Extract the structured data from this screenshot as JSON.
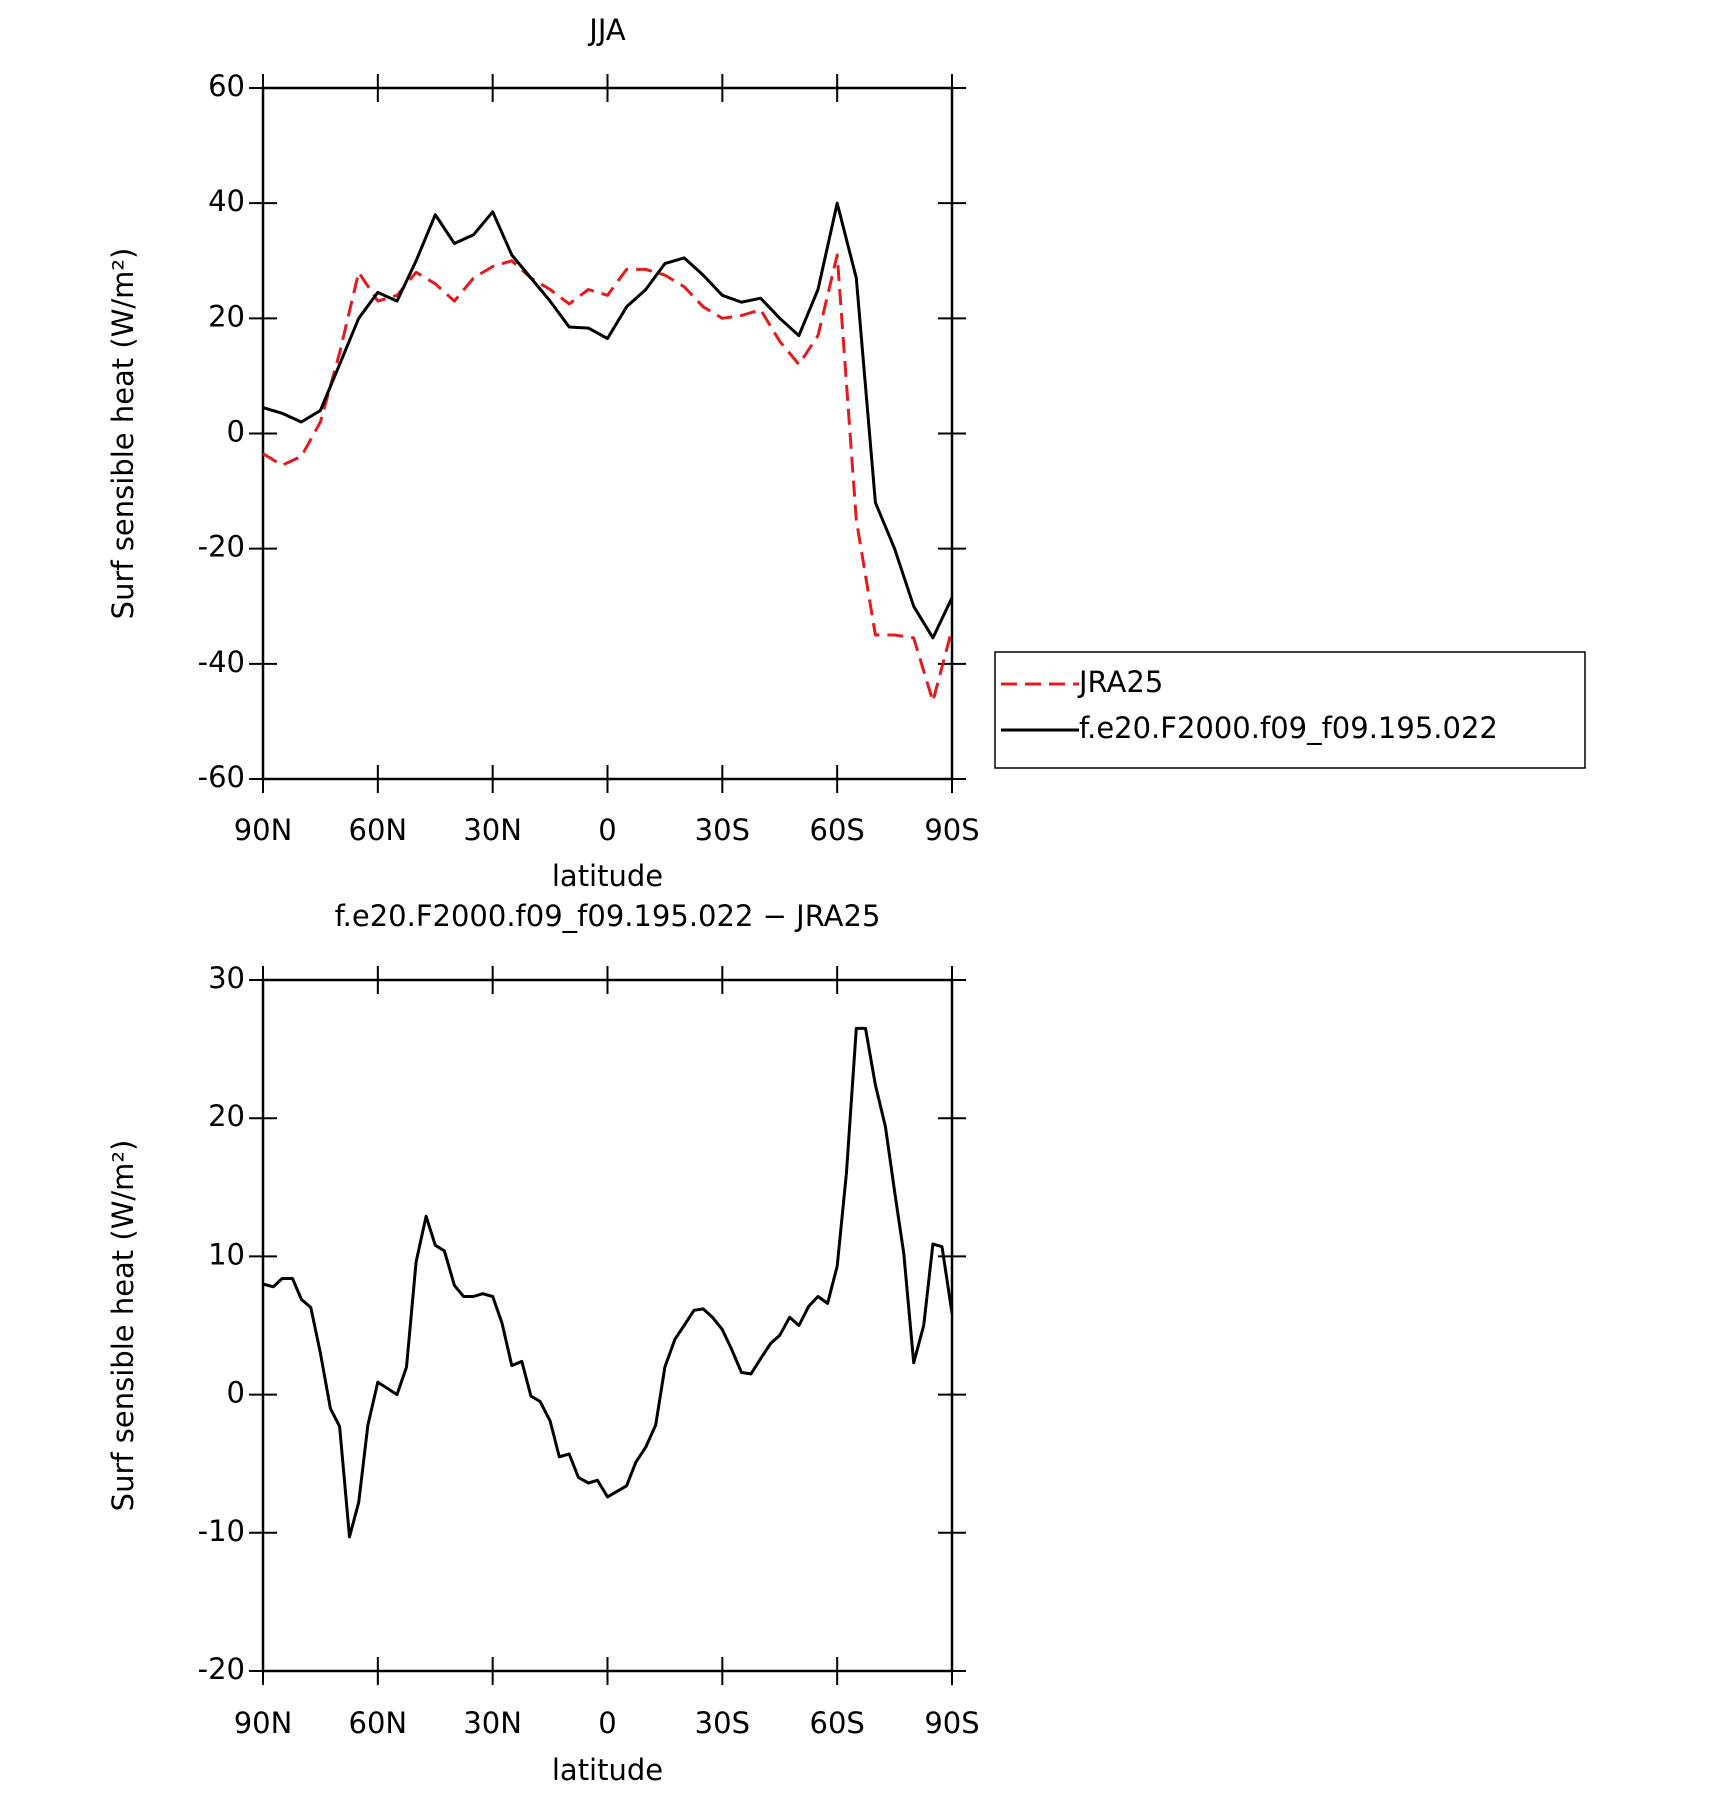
{
  "chart_data": [
    {
      "type": "line",
      "title": "JJA",
      "xlabel": "latitude",
      "ylabel": "Surf sensible heat (W/m²)",
      "x": [
        90,
        85,
        80,
        75,
        70,
        65,
        60,
        55,
        50,
        45,
        40,
        35,
        30,
        25,
        20,
        15,
        10,
        5,
        0,
        -5,
        -10,
        -15,
        -20,
        -25,
        -30,
        -35,
        -40,
        -45,
        -50,
        -55,
        -60,
        -65,
        -70,
        -75,
        -80,
        -85,
        -90
      ],
      "series": [
        {
          "name": "JRA25",
          "color": "#e41a1c",
          "style": "dashed",
          "values": [
            -3.5,
            -5.5,
            -4,
            2,
            14,
            28,
            23,
            24,
            28,
            26,
            23,
            27,
            29,
            30,
            27,
            25,
            22.5,
            25,
            24,
            28.5,
            28.5,
            27.5,
            25.5,
            22,
            20,
            20.5,
            21.5,
            16,
            12,
            17,
            31,
            -15,
            -35,
            -35,
            -35.5,
            -46.5,
            -34
          ]
        },
        {
          "name": "f.e20.F2000.f09_f09.195.022",
          "color": "#000000",
          "style": "solid",
          "values": [
            4.5,
            3.5,
            2,
            4,
            12,
            20,
            24.5,
            23,
            30,
            38,
            33,
            34.5,
            38.5,
            31,
            27,
            23,
            18.5,
            18.3,
            16.5,
            22,
            25,
            29.5,
            30.5,
            27.5,
            24,
            22.8,
            23.5,
            20,
            17,
            25,
            40,
            27,
            -12,
            -20,
            -30,
            -35.5,
            -28.5
          ]
        }
      ],
      "xlim": [
        90,
        -90
      ],
      "xticks": [
        {
          "value": 90,
          "label": "90N"
        },
        {
          "value": 60,
          "label": "60N"
        },
        {
          "value": 30,
          "label": "30N"
        },
        0,
        {
          "value": -30,
          "label": "30S"
        },
        {
          "value": -60,
          "label": "60S"
        },
        {
          "value": -90,
          "label": "90S"
        }
      ],
      "ylim": [
        -60,
        60
      ],
      "yticks": [
        -60,
        -40,
        -20,
        0,
        20,
        40,
        60
      ],
      "legend": "outside-right"
    },
    {
      "type": "line",
      "title": "f.e20.F2000.f09_f09.195.022 − JRA25",
      "xlabel": "latitude",
      "ylabel": "Surf sensible heat (W/m²)",
      "x": [
        90,
        87.3,
        85,
        82.3,
        80,
        77.5,
        75,
        72.4,
        70,
        67.4,
        65,
        62.6,
        60,
        55,
        52.5,
        50,
        47.4,
        45,
        42.6,
        40,
        37.6,
        35,
        32.6,
        30,
        27.6,
        25,
        22.4,
        20,
        17.6,
        15,
        12.6,
        10,
        7.6,
        5,
        2.6,
        0,
        -5,
        -7.4,
        -10,
        -12.6,
        -15,
        -17.6,
        -20,
        -22.6,
        -25,
        -27.4,
        -30,
        -32.4,
        -35,
        -37.5,
        -40,
        -42.6,
        -45,
        -47.6,
        -50,
        -52.6,
        -55,
        -57.5,
        -60,
        -62.4,
        -65,
        -67.4,
        -70,
        -72.6,
        -75,
        -77.4,
        -80,
        -82.6,
        -85,
        -87.4,
        -90
      ],
      "series": [
        {
          "color": "#000000",
          "style": "solid",
          "values": [
            8.0,
            7.8,
            8.4,
            8.4,
            6.9,
            6.3,
            3.0,
            -1.0,
            -2.3,
            -10.3,
            -7.8,
            -2.2,
            0.9,
            0.0,
            2.0,
            9.6,
            12.9,
            10.8,
            10.4,
            7.9,
            7.1,
            7.1,
            7.3,
            7.1,
            5.2,
            2.1,
            2.4,
            -0.1,
            -0.5,
            -1.9,
            -4.5,
            -4.3,
            -6.0,
            -6.4,
            -6.2,
            -7.4,
            -6.6,
            -4.9,
            -3.8,
            -2.2,
            2.0,
            4.0,
            5.0,
            6.1,
            6.2,
            5.6,
            4.7,
            3.3,
            1.6,
            1.5,
            2.6,
            3.7,
            4.3,
            5.6,
            5.0,
            6.4,
            7.1,
            6.6,
            9.3,
            16.0,
            26.5,
            26.5,
            22.4,
            19.4,
            14.7,
            10.2,
            2.3,
            5.0,
            10.9,
            10.7,
            5.9
          ]
        }
      ],
      "xlim": [
        90,
        -90
      ],
      "xticks": [
        {
          "value": 90,
          "label": "90N"
        },
        {
          "value": 60,
          "label": "60N"
        },
        {
          "value": 30,
          "label": "30N"
        },
        0,
        {
          "value": -30,
          "label": "30S"
        },
        {
          "value": -60,
          "label": "60S"
        },
        {
          "value": -90,
          "label": "90S"
        }
      ],
      "ylim": [
        -20,
        30
      ],
      "yticks": [
        -20,
        -10,
        0,
        10,
        20,
        30
      ]
    }
  ]
}
